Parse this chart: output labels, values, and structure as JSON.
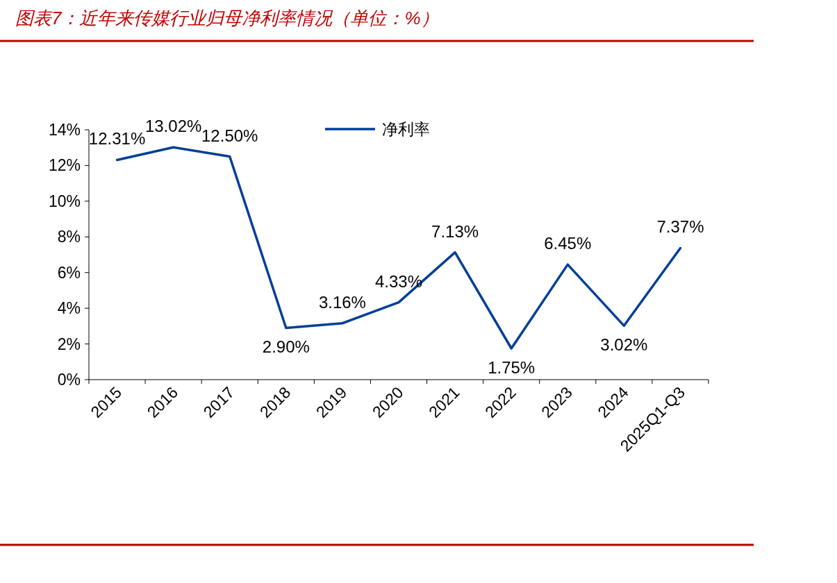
{
  "chart_data": {
    "type": "line",
    "title": "图表7：近年来传媒行业归母净利率情况（单位：%）",
    "categories": [
      "2015",
      "2016",
      "2017",
      "2018",
      "2019",
      "2020",
      "2021",
      "2022",
      "2023",
      "2024",
      "2025Q1-Q3"
    ],
    "series": [
      {
        "name": "净利率",
        "color": "#003f98",
        "values": [
          12.31,
          13.02,
          12.5,
          2.9,
          3.16,
          4.33,
          7.13,
          1.75,
          6.45,
          3.02,
          7.37
        ],
        "value_labels": [
          "12.31%",
          "13.02%",
          "12.50%",
          "2.90%",
          "3.16%",
          "4.33%",
          "7.13%",
          "1.75%",
          "6.45%",
          "3.02%",
          "7.37%"
        ]
      }
    ],
    "ylim": [
      0,
      14
    ],
    "yticks": [
      {
        "value": 0,
        "label": "0%"
      },
      {
        "value": 2,
        "label": "2%"
      },
      {
        "value": 4,
        "label": "4%"
      },
      {
        "value": 6,
        "label": "6%"
      },
      {
        "value": 8,
        "label": "8%"
      },
      {
        "value": 10,
        "label": "10%"
      },
      {
        "value": 12,
        "label": "12%"
      },
      {
        "value": 14,
        "label": "14%"
      }
    ],
    "grid": false,
    "legend": "top",
    "marker": "none",
    "line_style": "solid"
  }
}
